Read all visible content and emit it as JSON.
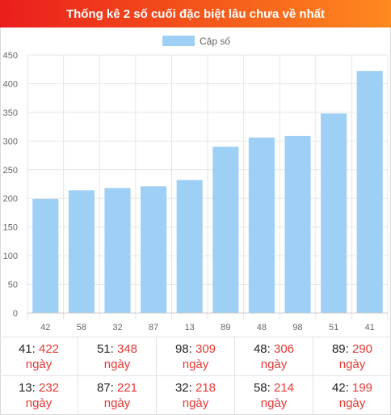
{
  "header": {
    "title": "Thống kê 2 số cuối đặc biệt lâu chưa về nhất"
  },
  "chart_data": {
    "type": "bar",
    "title": "",
    "legend": {
      "label": "Cặp số",
      "position": "top",
      "color": "#9ecff5"
    },
    "categories": [
      "42",
      "58",
      "32",
      "87",
      "13",
      "89",
      "48",
      "98",
      "51",
      "41"
    ],
    "series": [
      {
        "name": "Cặp số",
        "values": [
          199,
          214,
          218,
          221,
          232,
          290,
          306,
          309,
          348,
          422
        ]
      }
    ],
    "ylim": [
      0,
      450
    ],
    "yticks": [
      0,
      50,
      100,
      150,
      200,
      250,
      300,
      350,
      400,
      450
    ],
    "grid": true,
    "xlabel": "",
    "ylabel": "",
    "bar_color": "#9ecff5",
    "grid_color": "#e6e6e6"
  },
  "table": {
    "unit": "ngày",
    "rows": [
      [
        {
          "num": "41",
          "days": "422"
        },
        {
          "num": "51",
          "days": "348"
        },
        {
          "num": "98",
          "days": "309"
        },
        {
          "num": "48",
          "days": "306"
        },
        {
          "num": "89",
          "days": "290"
        }
      ],
      [
        {
          "num": "13",
          "days": "232"
        },
        {
          "num": "87",
          "days": "221"
        },
        {
          "num": "32",
          "days": "218"
        },
        {
          "num": "58",
          "days": "214"
        },
        {
          "num": "42",
          "days": "199"
        }
      ]
    ]
  },
  "colors": {
    "header_start": "#ea1d1d",
    "header_end": "#ff8a1f",
    "value_red": "#e53935"
  }
}
